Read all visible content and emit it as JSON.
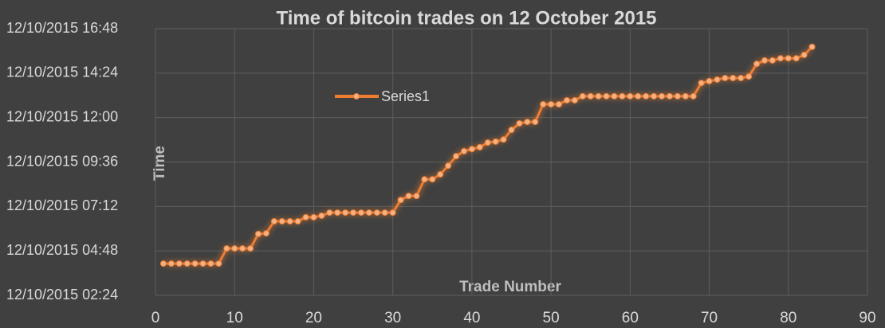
{
  "chart_data": {
    "type": "line",
    "title": "Time of bitcoin trades on 12 October 2015",
    "x_label": "Trade Number",
    "y_label": "Time",
    "x": [
      1,
      2,
      3,
      4,
      5,
      6,
      7,
      8,
      9,
      10,
      11,
      12,
      13,
      14,
      15,
      16,
      17,
      18,
      19,
      20,
      21,
      22,
      23,
      24,
      25,
      26,
      27,
      28,
      29,
      30,
      31,
      32,
      33,
      34,
      35,
      36,
      37,
      38,
      39,
      40,
      41,
      42,
      43,
      44,
      45,
      46,
      47,
      48,
      49,
      50,
      51,
      52,
      53,
      54,
      55,
      56,
      57,
      58,
      59,
      60,
      61,
      62,
      63,
      64,
      65,
      66,
      67,
      68,
      69,
      70,
      71,
      72,
      73,
      74,
      75,
      76,
      77,
      78,
      79,
      80,
      81,
      82,
      83
    ],
    "series": [
      {
        "name": "Series1",
        "color": "#ed7d31",
        "values": [
          247,
          247,
          247,
          247,
          247,
          247,
          247,
          247,
          296,
          296,
          296,
          296,
          343,
          345,
          384,
          384,
          384,
          384,
          397,
          397,
          402,
          412,
          412,
          412,
          412,
          412,
          412,
          412,
          412,
          412,
          453,
          466,
          466,
          520,
          520,
          536,
          564,
          595,
          611,
          618,
          624,
          639,
          642,
          649,
          680,
          701,
          706,
          706,
          763,
          763,
          763,
          776,
          776,
          789,
          789,
          789,
          789,
          789,
          789,
          789,
          789,
          789,
          789,
          789,
          789,
          789,
          789,
          789,
          832,
          838,
          843,
          848,
          848,
          848,
          853,
          894,
          905,
          905,
          912,
          912,
          912,
          923,
          949
        ]
      }
    ],
    "xlim": [
      0,
      90
    ],
    "xticks": [
      0,
      10,
      20,
      30,
      40,
      50,
      60,
      70,
      80,
      90
    ],
    "ylim": [
      144,
      1008
    ],
    "yticks": [
      {
        "value": 144,
        "label": "12/10/2015 02:24"
      },
      {
        "value": 288,
        "label": "12/10/2015 04:48"
      },
      {
        "value": 432,
        "label": "12/10/2015 07:12"
      },
      {
        "value": 576,
        "label": "12/10/2015 09:36"
      },
      {
        "value": 720,
        "label": "12/10/2015 12:00"
      },
      {
        "value": 864,
        "label": "12/10/2015 14:24"
      },
      {
        "value": 1008,
        "label": "12/10/2015 16:48"
      }
    ],
    "grid": true,
    "legend": "upper left"
  }
}
